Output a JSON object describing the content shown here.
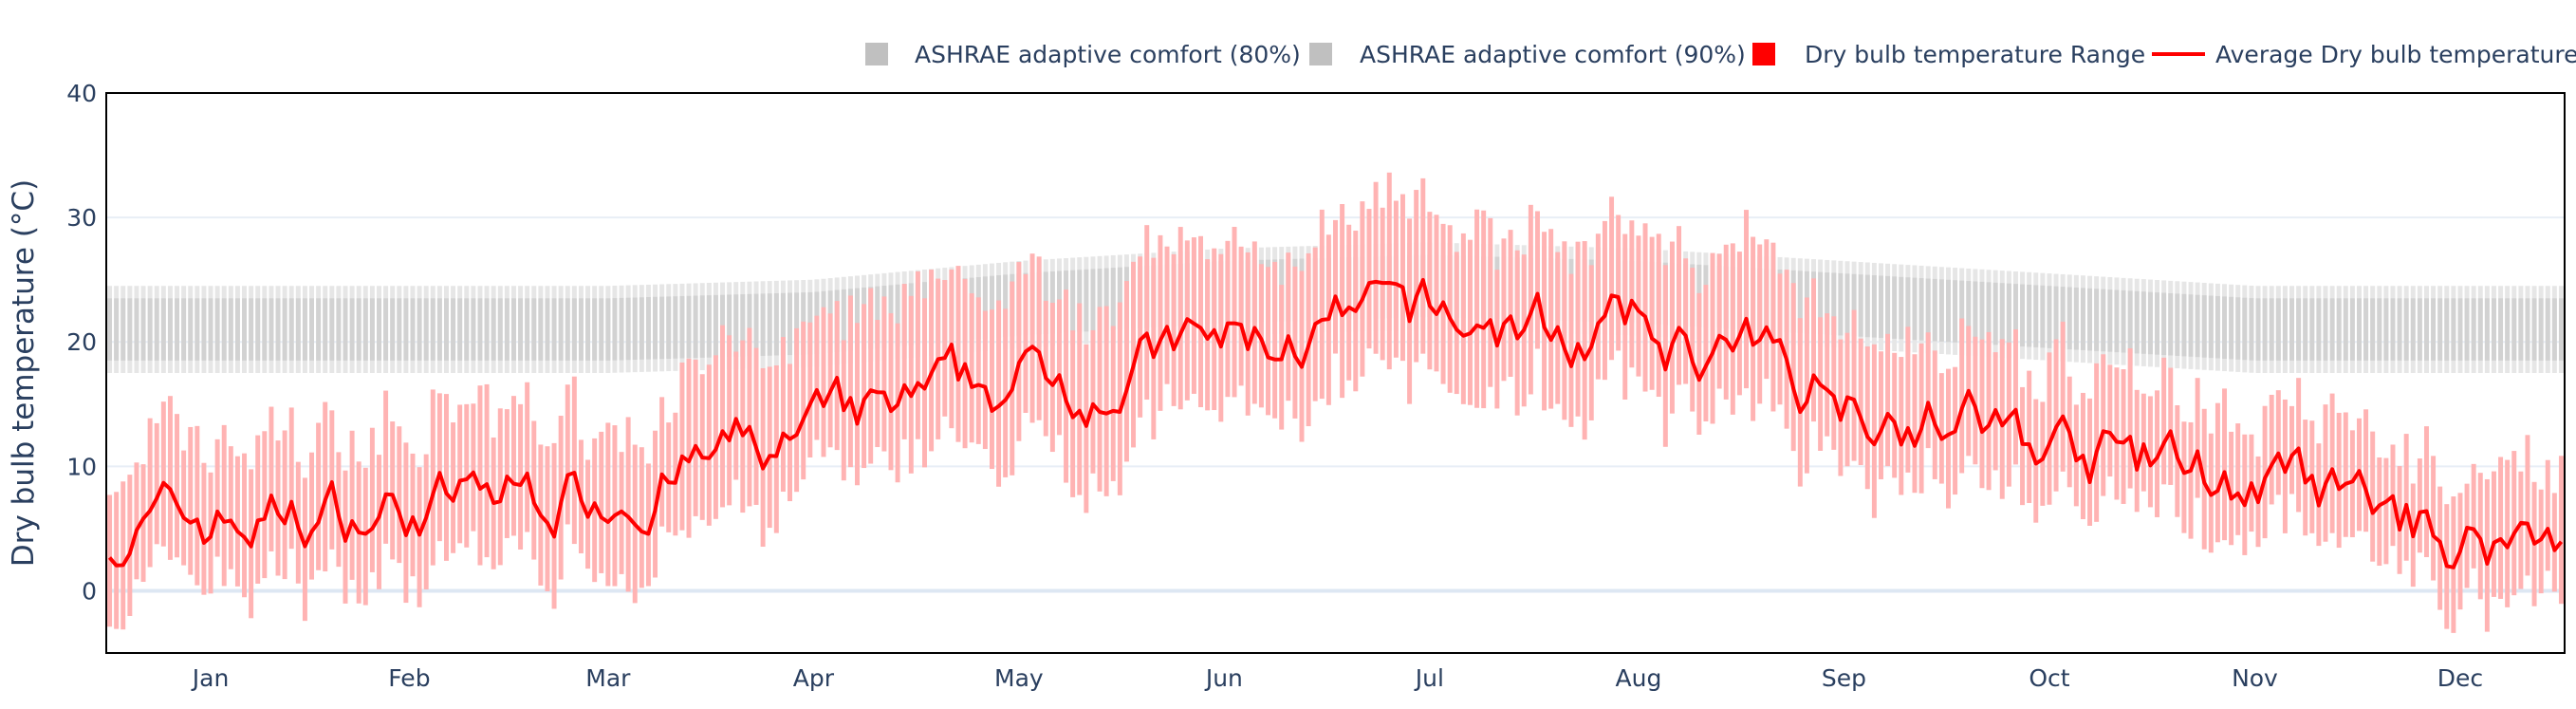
{
  "chart_data": {
    "type": "bar",
    "ylabel": "Dry bulb temperature (°C)",
    "ylim": [
      -5,
      40
    ],
    "yticks": [
      0,
      10,
      20,
      30,
      40
    ],
    "months": [
      "Jan",
      "Feb",
      "Mar",
      "Apr",
      "May",
      "Jun",
      "Jul",
      "Aug",
      "Sep",
      "Oct",
      "Nov",
      "Dec"
    ],
    "month_days": [
      31,
      28,
      31,
      30,
      31,
      30,
      31,
      31,
      30,
      31,
      30,
      31
    ],
    "grid": true,
    "legend_position": "top-right",
    "colors": {
      "comfort80": "#e6e6e6",
      "comfort90": "#d2d2d2",
      "range": "#ffb3b3",
      "average": "#ff0000",
      "grid": "#e8eef6",
      "zero_line": "#dde7f3",
      "frame": "#000000"
    },
    "series": [
      {
        "name": "ASHRAE adaptive comfort (80%)",
        "kind": "band",
        "color": "#c0c0c0"
      },
      {
        "name": "ASHRAE adaptive comfort (90%)",
        "kind": "band",
        "color": "#c0c0c0"
      },
      {
        "name": "Dry bulb temperature Range",
        "kind": "range-bar",
        "color": "#ff0000"
      },
      {
        "name": "Average Dry bulb temperature",
        "kind": "line",
        "color": "#ff0000"
      }
    ],
    "monthly_profile": {
      "avg": [
        5.5,
        6.5,
        8.5,
        12.0,
        16.5,
        19.5,
        21.5,
        20.5,
        16.5,
        11.5,
        8.5,
        4.0
      ],
      "lo": [
        2.0,
        3.0,
        4.5,
        8.0,
        12.0,
        15.0,
        17.0,
        16.5,
        13.0,
        8.0,
        5.5,
        1.0
      ],
      "hi": [
        10.0,
        11.5,
        13.0,
        17.5,
        22.5,
        25.0,
        27.5,
        26.5,
        21.5,
        16.0,
        12.0,
        7.5
      ],
      "c80lo": [
        17.5,
        17.5,
        17.5,
        18.0,
        19.5,
        20.5,
        21.0,
        20.5,
        19.5,
        18.5,
        17.5,
        17.5
      ],
      "c80hi": [
        24.5,
        24.5,
        24.5,
        25.0,
        26.5,
        27.5,
        28.0,
        27.5,
        26.5,
        25.5,
        24.5,
        24.5
      ],
      "c90lo": [
        18.5,
        18.5,
        18.5,
        19.0,
        20.5,
        21.5,
        22.0,
        21.5,
        20.5,
        19.5,
        18.5,
        18.5
      ],
      "c90hi": [
        23.5,
        23.5,
        23.5,
        24.0,
        25.5,
        26.5,
        27.0,
        26.5,
        25.5,
        24.5,
        23.5,
        23.5
      ]
    }
  }
}
